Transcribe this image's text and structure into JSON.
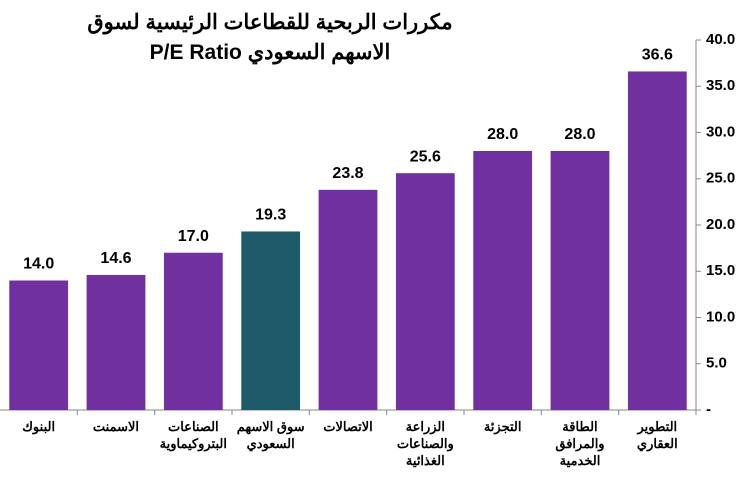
{
  "chart_data": {
    "type": "bar",
    "title": "مكررات الربحية للقطاعات الرئيسية لسوق الاسهم السعودي P/E Ratio",
    "categories": [
      "البنوك",
      "الاسمنت",
      "الصناعات البتروكيماوية",
      "سوق الاسهم السعودي",
      "الاتصالات",
      "الزراعة والصناعات الغذائية",
      "التجزئة",
      "الطاقة والمرافق الخدمية",
      "التطوير العقاري"
    ],
    "values": [
      14.0,
      14.6,
      17.0,
      19.3,
      23.8,
      25.6,
      28.0,
      28.0,
      36.6
    ],
    "value_labels": [
      "14.0",
      "14.6",
      "17.0",
      "19.3",
      "23.8",
      "25.6",
      "28.0",
      "28.0",
      "36.6"
    ],
    "colors": [
      "#7030a0",
      "#7030a0",
      "#7030a0",
      "#1f5a68",
      "#7030a0",
      "#7030a0",
      "#7030a0",
      "#7030a0",
      "#7030a0"
    ],
    "ylim": [
      0,
      40
    ],
    "yticks": [
      {
        "value": 0,
        "label": "-"
      },
      {
        "value": 5,
        "label": "5.0"
      },
      {
        "value": 10,
        "label": "10.0"
      },
      {
        "value": 15,
        "label": "15.0"
      },
      {
        "value": 20,
        "label": "20.0"
      },
      {
        "value": 25,
        "label": "25.0"
      },
      {
        "value": 30,
        "label": "30.0"
      },
      {
        "value": 35,
        "label": "35.0"
      },
      {
        "value": 40,
        "label": "40.0"
      }
    ],
    "y_axis_side": "right",
    "grid": false
  }
}
